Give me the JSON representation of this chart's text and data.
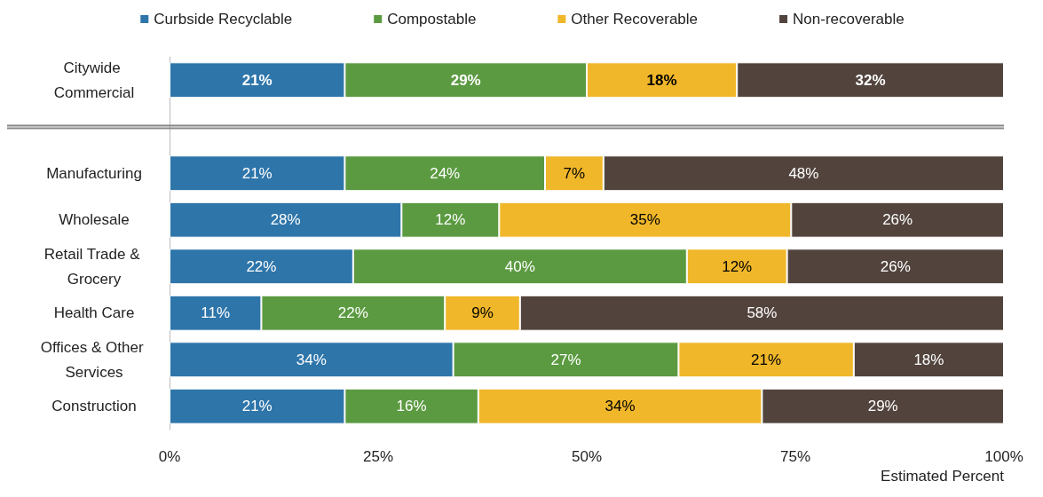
{
  "chart_data": {
    "type": "bar",
    "orientation": "horizontal",
    "stacked": true,
    "categories": [
      "Citywide Commercial",
      null,
      "Manufacturing",
      "Wholesale",
      "Retail Trade & Grocery",
      "Health Care",
      "Offices & Other Services",
      "Construction"
    ],
    "series": [
      {
        "name": "Curbside Recyclable",
        "color": "#2e75aa",
        "values": [
          21,
          null,
          21,
          27.8,
          22,
          11,
          34,
          21
        ],
        "value_labels": [
          "21%",
          null,
          "21%",
          "28%",
          "22%",
          "11%",
          "34%",
          "21%"
        ]
      },
      {
        "name": "Compostable",
        "color": "#5b9a41",
        "values": [
          29,
          null,
          24,
          11.7,
          40,
          22,
          27,
          16
        ],
        "value_labels": [
          "29%",
          null,
          "24%",
          "12%",
          "40%",
          "22%",
          "27%",
          "16%"
        ]
      },
      {
        "name": "Other Recoverable",
        "color": "#f0b72a",
        "values": [
          18,
          null,
          7,
          35,
          12,
          9,
          21,
          34
        ],
        "value_labels": [
          "18%",
          null,
          "7%",
          "35%",
          "12%",
          "9%",
          "21%",
          "34%"
        ]
      },
      {
        "name": "Non-recoverable",
        "color": "#52443d",
        "values": [
          32,
          null,
          48,
          25.5,
          26,
          58,
          18,
          29
        ],
        "value_labels": [
          "32%",
          null,
          "48%",
          "26%",
          "26%",
          "58%",
          "18%",
          "29%"
        ]
      }
    ],
    "xlabel": "Estimated Percent",
    "xlim": [
      0,
      100
    ],
    "xticks": [
      {
        "value": 0,
        "label": "0%"
      },
      {
        "value": 25,
        "label": "25%"
      },
      {
        "value": 50,
        "label": "50%"
      },
      {
        "value": 75,
        "label": "75%"
      },
      {
        "value": 100,
        "label": "100%"
      }
    ],
    "legend": "top",
    "grid": false
  }
}
